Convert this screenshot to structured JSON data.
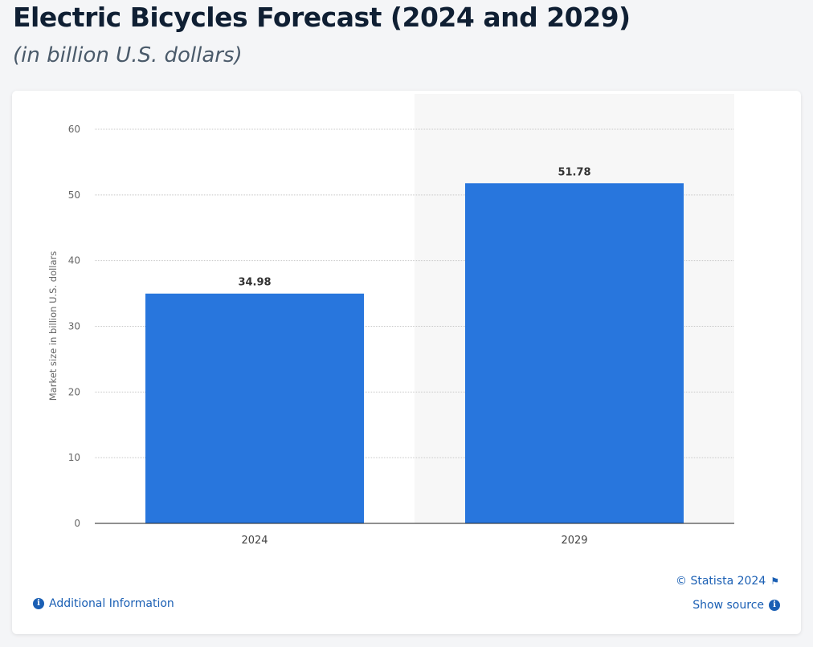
{
  "title": "Electric Bicycles Forecast (2024 and 2029)",
  "subtitle": "(in billion U.S. dollars)",
  "footer": {
    "additional_info": "Additional Information",
    "copyright": "© Statista 2024",
    "show_source": "Show source"
  },
  "colors": {
    "bar": "#2876dd",
    "highlight_band": "#f7f7f7",
    "link": "#1a5fb4"
  },
  "chart_data": {
    "type": "bar",
    "categories": [
      "2024",
      "2029"
    ],
    "values": [
      34.98,
      51.78
    ],
    "data_labels": [
      "34.98",
      "51.78"
    ],
    "title": "",
    "xlabel": "",
    "ylabel": "Market size in billion U.S. dollars",
    "ylim": [
      0,
      60
    ],
    "yticks": [
      0,
      10,
      20,
      30,
      40,
      50,
      60
    ],
    "grid": true,
    "highlighted_category": "2029"
  }
}
